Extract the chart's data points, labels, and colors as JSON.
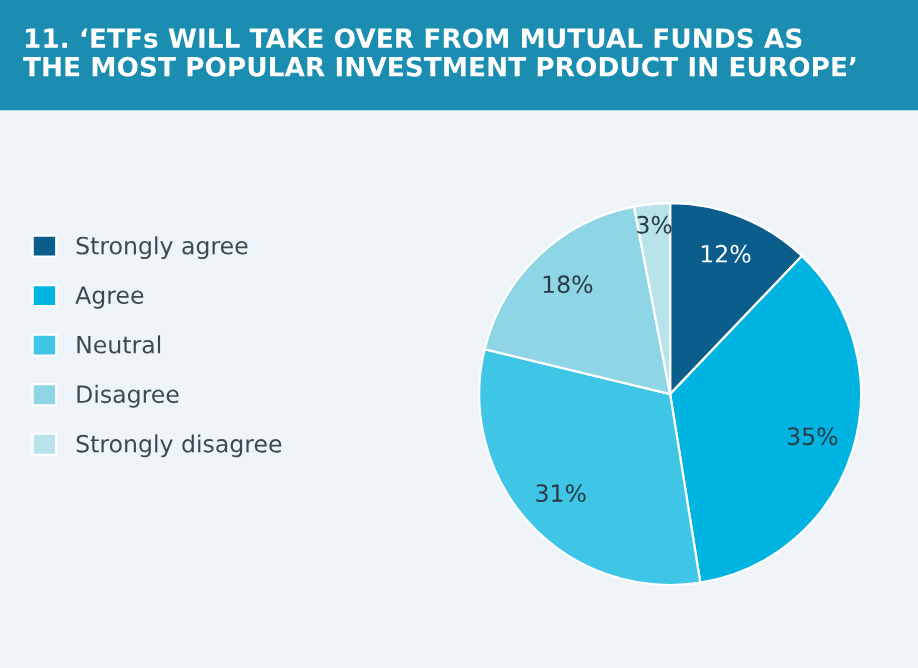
{
  "chart_data": {
    "type": "pie",
    "title": "11. ‘ETFs WILL TAKE OVER FROM MUTUAL FUNDS AS\nTHE MOST POPULAR INVESTMENT PRODUCT IN EUROPE’",
    "categories": [
      "Strongly agree",
      "Agree",
      "Neutral",
      "Disagree",
      "Strongly disagree"
    ],
    "values": [
      12,
      35,
      31,
      18,
      3
    ],
    "colors": [
      "#0b5e8c",
      "#00b4e1",
      "#3fc5e6",
      "#8ed6e5",
      "#b9e3ea"
    ],
    "value_labels": [
      "12%",
      "35%",
      "31%",
      "18%",
      "3%"
    ],
    "legend": "left"
  }
}
